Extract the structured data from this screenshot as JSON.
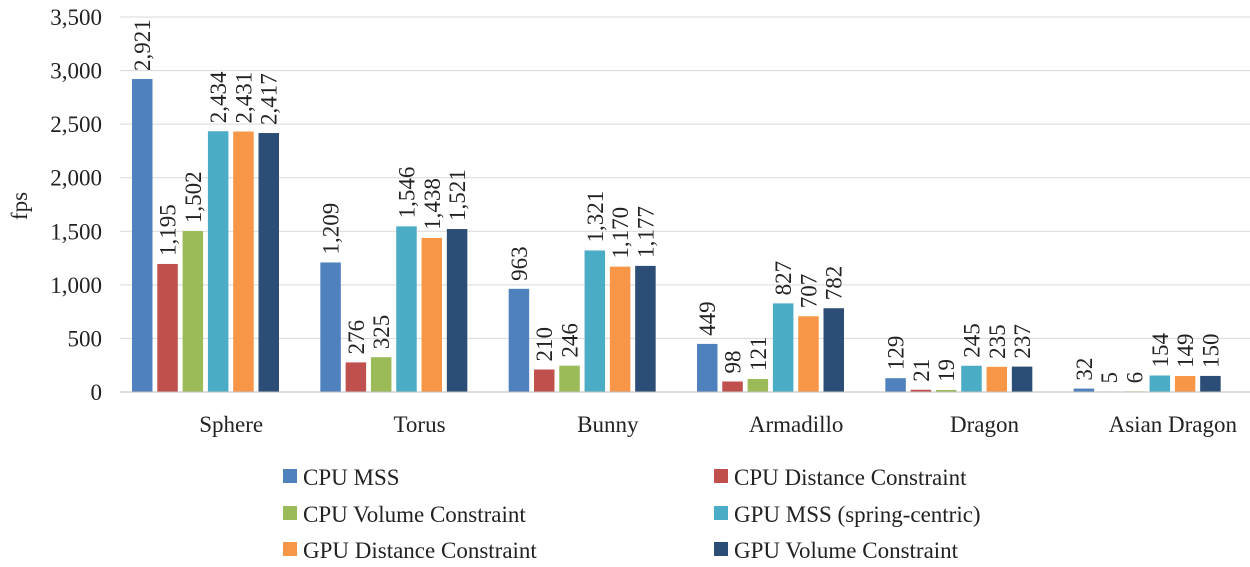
{
  "chart_data": {
    "type": "bar",
    "ylabel": "fps",
    "xlabel": "",
    "ylim": [
      0,
      3500
    ],
    "yticks": [
      0,
      500,
      1000,
      1500,
      2000,
      2500,
      3000,
      3500
    ],
    "ytick_labels": [
      "0",
      "500",
      "1,000",
      "1,500",
      "2,000",
      "2,500",
      "3,000",
      "3,500"
    ],
    "grid": true,
    "legend_position": "bottom",
    "categories": [
      "Sphere",
      "Torus",
      "Bunny",
      "Armadillo",
      "Dragon",
      "Asian Dragon"
    ],
    "series": [
      {
        "name": "CPU MSS",
        "color": "#4f81bd",
        "values": [
          2921,
          1209,
          963,
          449,
          129,
          32
        ],
        "labels": [
          "2,921",
          "1,209",
          "963",
          "449",
          "129",
          "32"
        ]
      },
      {
        "name": "CPU Distance Constraint",
        "color": "#c0504d",
        "values": [
          1195,
          276,
          210,
          98,
          21,
          5
        ],
        "labels": [
          "1,195",
          "276",
          "210",
          "98",
          "21",
          "5"
        ]
      },
      {
        "name": "CPU Volume Constraint",
        "color": "#9bbb59",
        "values": [
          1502,
          325,
          246,
          121,
          19,
          6
        ],
        "labels": [
          "1,502",
          "325",
          "246",
          "121",
          "19",
          "6"
        ]
      },
      {
        "name": "GPU MSS (spring-centric)",
        "color": "#4bacc6",
        "values": [
          2434,
          1546,
          1321,
          827,
          245,
          154
        ],
        "labels": [
          "2,434",
          "1,546",
          "1,321",
          "827",
          "245",
          "154"
        ]
      },
      {
        "name": "GPU Distance Constraint",
        "color": "#f79646",
        "values": [
          2431,
          1438,
          1170,
          707,
          235,
          149
        ],
        "labels": [
          "2,431",
          "1,438",
          "1,170",
          "707",
          "235",
          "149"
        ]
      },
      {
        "name": "GPU Volume Constraint",
        "color": "#2c4d75",
        "values": [
          2417,
          1521,
          1177,
          782,
          237,
          150
        ],
        "labels": [
          "2,417",
          "1,521",
          "1,177",
          "782",
          "237",
          "150"
        ]
      }
    ]
  }
}
